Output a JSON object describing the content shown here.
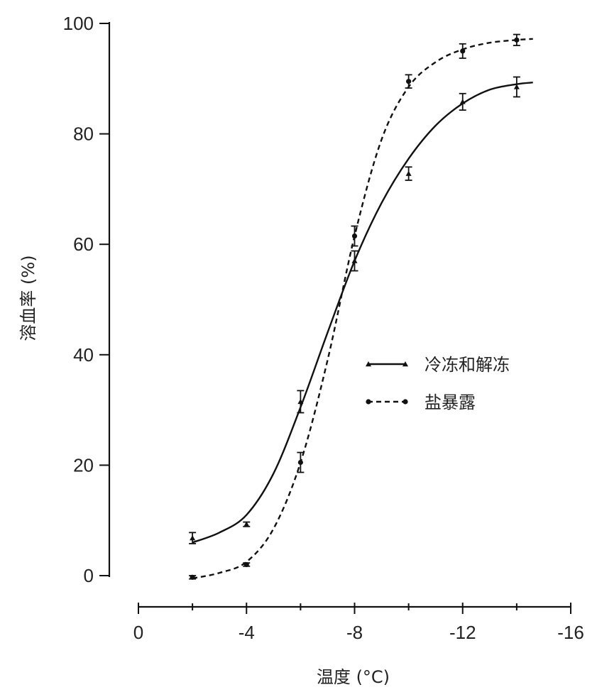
{
  "chart_data": {
    "type": "line",
    "title": "",
    "xlabel": "温度 (°C)",
    "ylabel": "溶血率 (%)",
    "xlim": [
      0,
      -16
    ],
    "ylim": [
      0,
      100
    ],
    "x_ticks": [
      0,
      -4,
      -8,
      -12,
      -16
    ],
    "x_tick_labels": [
      "0",
      "-4",
      "-8",
      "-12",
      "-16"
    ],
    "y_ticks": [
      0,
      20,
      40,
      60,
      80,
      100
    ],
    "y_tick_labels": [
      "0",
      "20",
      "40",
      "60",
      "80",
      "100"
    ],
    "x_minor_ticks": [
      -2,
      -6,
      -10,
      -14
    ],
    "grid": false,
    "legend_position": "center-right",
    "series": [
      {
        "name": "冷冻和解冻",
        "line_style": "solid",
        "marker": "triangle",
        "points": [
          {
            "x": -2,
            "y": 6.8,
            "err": 1.0
          },
          {
            "x": -4,
            "y": 9.3,
            "err": 0.4
          },
          {
            "x": -6,
            "y": 31.5,
            "err": 2.0
          },
          {
            "x": -8,
            "y": 57.0,
            "err": 1.8
          },
          {
            "x": -10,
            "y": 72.8,
            "err": 1.2
          },
          {
            "x": -12,
            "y": 85.8,
            "err": 1.5
          },
          {
            "x": -14,
            "y": 88.5,
            "err": 1.8
          }
        ],
        "fit": [
          [
            -2,
            6.0
          ],
          [
            -3,
            7.8
          ],
          [
            -4,
            11.0
          ],
          [
            -5,
            18.5
          ],
          [
            -6,
            30.5
          ],
          [
            -7,
            44.0
          ],
          [
            -8,
            57.0
          ],
          [
            -9,
            67.5
          ],
          [
            -10,
            75.5
          ],
          [
            -11,
            81.5
          ],
          [
            -12,
            85.5
          ],
          [
            -13,
            88.0
          ],
          [
            -14,
            89.0
          ],
          [
            -14.6,
            89.3
          ]
        ]
      },
      {
        "name": "盐暴露",
        "line_style": "dashed",
        "marker": "circle",
        "points": [
          {
            "x": -2,
            "y": -0.3,
            "err": 0.3
          },
          {
            "x": -4,
            "y": 2.0,
            "err": 0.3
          },
          {
            "x": -6,
            "y": 20.5,
            "err": 1.8
          },
          {
            "x": -8,
            "y": 61.5,
            "err": 1.8
          },
          {
            "x": -10,
            "y": 89.5,
            "err": 1.2
          },
          {
            "x": -12,
            "y": 95.0,
            "err": 1.3
          },
          {
            "x": -14,
            "y": 97.0,
            "err": 1.0
          }
        ],
        "fit": [
          [
            -2,
            -0.5
          ],
          [
            -3,
            0.5
          ],
          [
            -4,
            2.5
          ],
          [
            -5,
            8.5
          ],
          [
            -6,
            20.5
          ],
          [
            -7,
            39.0
          ],
          [
            -8,
            61.5
          ],
          [
            -9,
            79.0
          ],
          [
            -10,
            88.5
          ],
          [
            -11,
            93.0
          ],
          [
            -12,
            95.3
          ],
          [
            -13,
            96.5
          ],
          [
            -14,
            97.0
          ],
          [
            -14.6,
            97.2
          ]
        ]
      }
    ]
  }
}
